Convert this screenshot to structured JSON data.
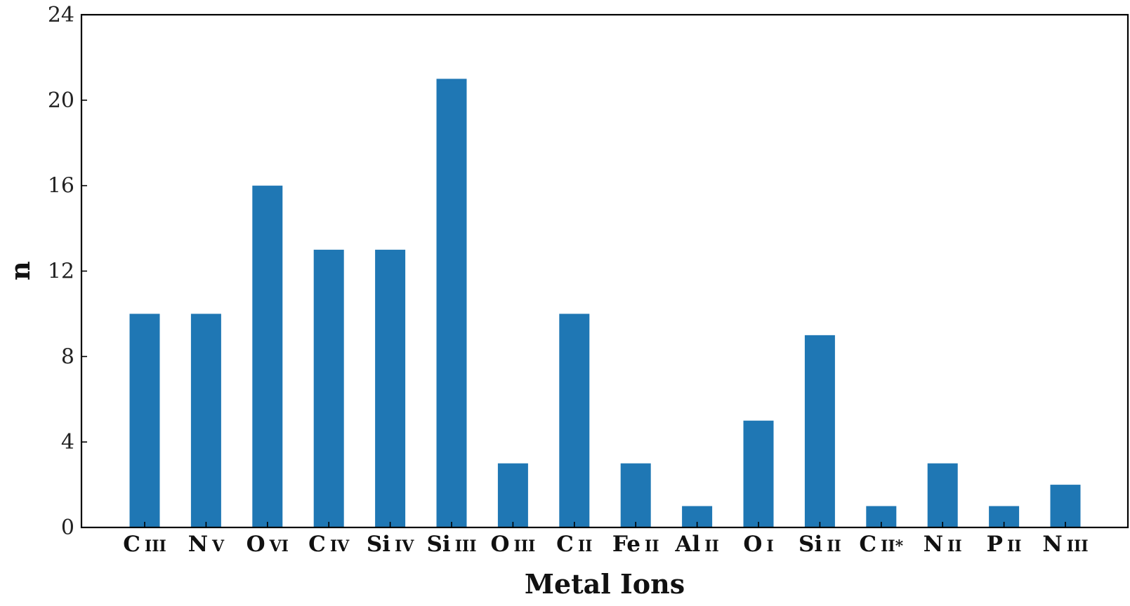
{
  "chart_data": {
    "type": "bar",
    "title": "",
    "xlabel": "Metal Ions",
    "ylabel": "n",
    "ylim": [
      0,
      24
    ],
    "yticks": [
      0,
      4,
      8,
      12,
      16,
      20,
      24
    ],
    "grid": false,
    "categories": [
      {
        "element": "C",
        "ion": "III"
      },
      {
        "element": "N",
        "ion": "V"
      },
      {
        "element": "O",
        "ion": "VI"
      },
      {
        "element": "C",
        "ion": "IV"
      },
      {
        "element": "Si",
        "ion": "IV"
      },
      {
        "element": "Si",
        "ion": "III"
      },
      {
        "element": "O",
        "ion": "III"
      },
      {
        "element": "C",
        "ion": "II"
      },
      {
        "element": "Fe",
        "ion": "II"
      },
      {
        "element": "Al",
        "ion": "II"
      },
      {
        "element": "O",
        "ion": "I"
      },
      {
        "element": "Si",
        "ion": "II"
      },
      {
        "element": "C",
        "ion": "II*"
      },
      {
        "element": "N",
        "ion": "II"
      },
      {
        "element": "P",
        "ion": "II"
      },
      {
        "element": "N",
        "ion": "III"
      }
    ],
    "values": [
      10,
      10,
      16,
      13,
      13,
      21,
      3,
      10,
      3,
      1,
      5,
      9,
      1,
      3,
      1,
      2
    ],
    "bar_color": "#1f77b4"
  }
}
